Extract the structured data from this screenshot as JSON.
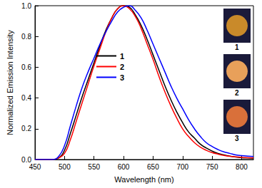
{
  "chart_data": {
    "type": "line",
    "x_label": "Wavelength (nm)",
    "y_label": "Normalized Emission Intensity",
    "x": [
      450,
      470,
      480,
      490,
      500,
      510,
      520,
      530,
      540,
      550,
      560,
      570,
      580,
      590,
      600,
      610,
      620,
      630,
      640,
      650,
      660,
      670,
      680,
      690,
      700,
      710,
      720,
      730,
      740,
      750,
      760,
      770,
      780,
      790,
      800,
      810,
      820
    ],
    "series": [
      {
        "name": "1",
        "color": "#000000",
        "values": [
          0,
          0,
          0,
          0.01,
          0.06,
          0.17,
          0.29,
          0.41,
          0.52,
          0.63,
          0.74,
          0.84,
          0.92,
          0.98,
          1.0,
          0.99,
          0.94,
          0.87,
          0.78,
          0.68,
          0.58,
          0.48,
          0.39,
          0.31,
          0.24,
          0.18,
          0.14,
          0.1,
          0.075,
          0.055,
          0.04,
          0.03,
          0.022,
          0.016,
          0.012,
          0.01,
          0.008
        ]
      },
      {
        "name": "2",
        "color": "#ff0000",
        "values": [
          0,
          0,
          0,
          0.01,
          0.04,
          0.13,
          0.25,
          0.37,
          0.49,
          0.61,
          0.72,
          0.83,
          0.92,
          0.98,
          1.0,
          0.98,
          0.93,
          0.85,
          0.75,
          0.65,
          0.54,
          0.44,
          0.35,
          0.27,
          0.2,
          0.15,
          0.11,
          0.08,
          0.06,
          0.045,
          0.035,
          0.027,
          0.021,
          0.017,
          0.014,
          0.012,
          0.01
        ]
      },
      {
        "name": "3",
        "color": "#0000ff",
        "values": [
          0,
          0,
          0,
          0.02,
          0.09,
          0.22,
          0.35,
          0.47,
          0.57,
          0.66,
          0.75,
          0.83,
          0.9,
          0.96,
          0.99,
          1.0,
          0.97,
          0.92,
          0.84,
          0.75,
          0.66,
          0.57,
          0.48,
          0.4,
          0.33,
          0.26,
          0.2,
          0.15,
          0.11,
          0.085,
          0.065,
          0.05,
          0.04,
          0.03,
          0.025,
          0.022,
          0.02
        ]
      }
    ],
    "xlim": [
      450,
      820
    ],
    "xticks": [
      450,
      500,
      550,
      600,
      650,
      700,
      750,
      800
    ],
    "ylim": [
      0,
      1
    ],
    "yticks": [
      {
        "value": 0,
        "label": "0.0"
      },
      0.2,
      0.4,
      0.6,
      0.8,
      {
        "value": 1,
        "label": "1.0"
      }
    ],
    "grid": false,
    "legend": "upper left"
  }
}
